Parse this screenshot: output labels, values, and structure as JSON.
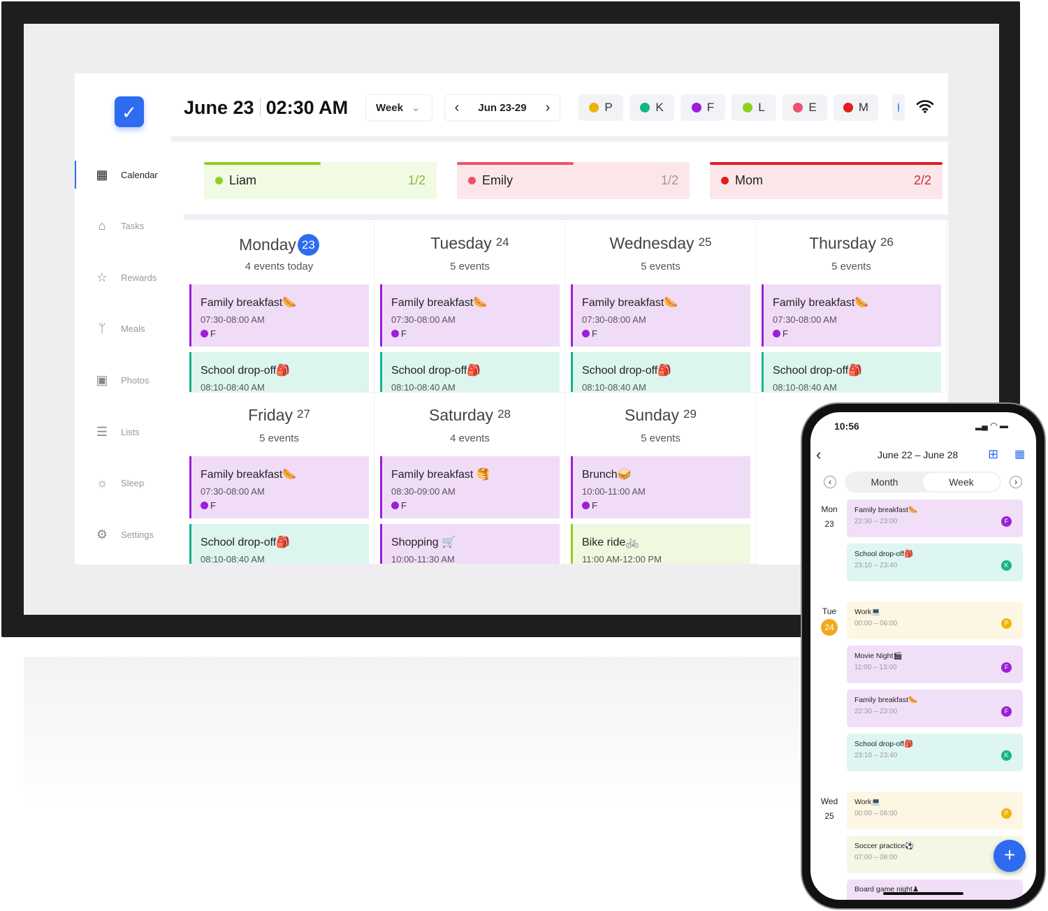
{
  "colors": {
    "accent": "#2f6bf0",
    "P": "#f0b400",
    "K": "#16b38a",
    "F": "#9b1fd9",
    "L": "#8fcf1f",
    "E": "#f0506e",
    "M": "#e01e1e"
  },
  "sidebar": {
    "logo_icon": "calendar-check-icon",
    "items": [
      {
        "label": "Calendar",
        "icon": "calendar-icon",
        "active": true
      },
      {
        "label": "Tasks",
        "icon": "broom-icon"
      },
      {
        "label": "Rewards",
        "icon": "star-icon"
      },
      {
        "label": "Meals",
        "icon": "utensils-icon"
      },
      {
        "label": "Photos",
        "icon": "photo-icon"
      },
      {
        "label": "Lists",
        "icon": "list-icon"
      },
      {
        "label": "Sleep",
        "icon": "sun-icon"
      },
      {
        "label": "Settings",
        "icon": "gear-icon"
      }
    ]
  },
  "header": {
    "date": "June 23",
    "time": "02:30 AM",
    "view": "Week",
    "range": "Jun 23-29",
    "members": [
      {
        "initial": "P",
        "color": "#f0b400"
      },
      {
        "initial": "K",
        "color": "#16b38a"
      },
      {
        "initial": "F",
        "color": "#9b1fd9"
      },
      {
        "initial": "L",
        "color": "#8fcf1f"
      },
      {
        "initial": "E",
        "color": "#f0506e"
      },
      {
        "initial": "M",
        "color": "#e01e1e"
      }
    ]
  },
  "summary": [
    {
      "name": "Liam",
      "count": "1/2",
      "progress": 0.5,
      "color": "#8fcf1f",
      "bg": "#f1fae3",
      "countColor": "#8fb83a"
    },
    {
      "name": "Emily",
      "count": "1/2",
      "progress": 0.5,
      "color": "#f0506e",
      "bg": "#fde6ea",
      "countColor": "#999"
    },
    {
      "name": "Mom",
      "count": "2/2",
      "progress": 1.0,
      "color": "#e01e1e",
      "bg": "#fde6ea",
      "countColor": "#c03030"
    }
  ],
  "days": [
    {
      "name": "Monday",
      "num": "23",
      "today": true,
      "count": "4 events today",
      "events": [
        {
          "title": "Family breakfast🌭",
          "time": "07:30-08:00 AM",
          "who": "F",
          "type": "purple"
        },
        {
          "title": "School drop-off🎒",
          "time": "08:10-08:40 AM",
          "type": "teal"
        }
      ]
    },
    {
      "name": "Tuesday",
      "num": "24",
      "count": "5 events",
      "events": [
        {
          "title": "Family breakfast🌭",
          "time": "07:30-08:00 AM",
          "who": "F",
          "type": "purple"
        },
        {
          "title": "School drop-off🎒",
          "time": "08:10-08:40 AM",
          "type": "teal"
        }
      ]
    },
    {
      "name": "Wednesday",
      "num": "25",
      "count": "5 events",
      "events": [
        {
          "title": "Family breakfast🌭",
          "time": "07:30-08:00 AM",
          "who": "F",
          "type": "purple"
        },
        {
          "title": "School drop-off🎒",
          "time": "08:10-08:40 AM",
          "type": "teal"
        }
      ]
    },
    {
      "name": "Thursday",
      "num": "26",
      "count": "5 events",
      "events": [
        {
          "title": "Family breakfast🌭",
          "time": "07:30-08:00 AM",
          "who": "F",
          "type": "purple"
        },
        {
          "title": "School drop-off🎒",
          "time": "08:10-08:40 AM",
          "type": "teal"
        }
      ]
    },
    {
      "name": "Friday",
      "num": "27",
      "count": "5 events",
      "events": [
        {
          "title": "Family breakfast🌭",
          "time": "07:30-08:00 AM",
          "who": "F",
          "type": "purple"
        },
        {
          "title": "School drop-off🎒",
          "time": "08:10-08:40 AM",
          "type": "teal"
        }
      ]
    },
    {
      "name": "Saturday",
      "num": "28",
      "count": "4 events",
      "events": [
        {
          "title": "Family breakfast 🥞",
          "time": "08:30-09:00 AM",
          "who": "F",
          "type": "purple"
        },
        {
          "title": "Shopping 🛒",
          "time": "10:00-11:30 AM",
          "type": "purple"
        }
      ]
    },
    {
      "name": "Sunday",
      "num": "29",
      "count": "5 events",
      "events": [
        {
          "title": "Brunch🥪",
          "time": "10:00-11:00 AM",
          "who": "F",
          "type": "purple"
        },
        {
          "title": "Bike ride🚲",
          "time": "11:00 AM-12:00 PM",
          "type": "green"
        }
      ]
    }
  ],
  "phone": {
    "clock": "10:56",
    "range": "June 22 – June 28",
    "tabs": [
      "Month",
      "Week"
    ],
    "active_tab": "Week",
    "days": [
      {
        "dow": "Mon",
        "num": "23",
        "events": [
          {
            "title": "Family breakfast🌭",
            "time": "22:30 – 23:00",
            "who": "F"
          },
          {
            "title": "School drop-off🎒",
            "time": "23:10 – 23:40",
            "who": "K"
          }
        ]
      },
      {
        "dow": "Tue",
        "num": "24",
        "today": true,
        "events": [
          {
            "title": "Work💻",
            "time": "00:00 – 06:00",
            "who": "P"
          },
          {
            "title": "Movie Night🎬",
            "time": "11:00 – 13:00",
            "who": "F"
          },
          {
            "title": "Family breakfast🌭",
            "time": "22:30 – 23:00",
            "who": "F"
          },
          {
            "title": "School drop-off🎒",
            "time": "23:10 – 23:40",
            "who": "K"
          }
        ]
      },
      {
        "dow": "Wed",
        "num": "25",
        "events": [
          {
            "title": "Work💻",
            "time": "00:00 – 06:00",
            "who": "P"
          },
          {
            "title": "Soccer practice⚽",
            "time": "07:00 – 08:00",
            "who": ""
          },
          {
            "title": "Board game night♟",
            "time": "",
            "who": ""
          }
        ]
      }
    ],
    "fab": "+"
  }
}
